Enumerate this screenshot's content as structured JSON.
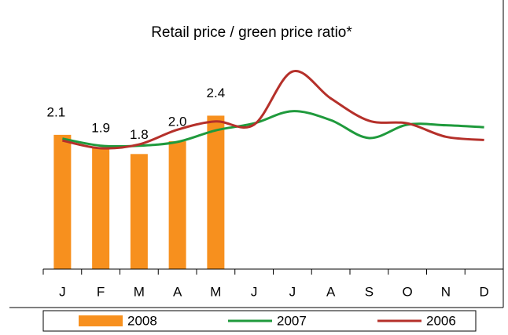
{
  "chart_data": {
    "type": "bar-line",
    "title": "Retail price / green price ratio*",
    "categories": [
      "J",
      "F",
      "M",
      "A",
      "M",
      "J",
      "J",
      "A",
      "S",
      "O",
      "N",
      "D"
    ],
    "ylim": [
      0,
      3.7
    ],
    "legend": "bottom",
    "series": [
      {
        "name": "2008",
        "type": "bar",
        "color": "#f7901e",
        "values": [
          2.1,
          1.9,
          1.8,
          2.0,
          2.4,
          null,
          null,
          null,
          null,
          null,
          null,
          null
        ],
        "value_labels": [
          "2.1",
          "1.9",
          "1.8",
          "2.0",
          "2.4",
          null,
          null,
          null,
          null,
          null,
          null,
          null
        ]
      },
      {
        "name": "2007",
        "type": "line",
        "color": "#1f9a3c",
        "values": [
          2.04,
          1.93,
          1.93,
          1.99,
          2.17,
          2.28,
          2.47,
          2.33,
          2.05,
          2.26,
          2.25,
          2.22
        ]
      },
      {
        "name": "2006",
        "type": "line",
        "color": "#b5302a",
        "values": [
          2.01,
          1.89,
          1.95,
          2.18,
          2.31,
          2.26,
          3.09,
          2.67,
          2.32,
          2.28,
          2.07,
          2.02
        ]
      }
    ]
  }
}
